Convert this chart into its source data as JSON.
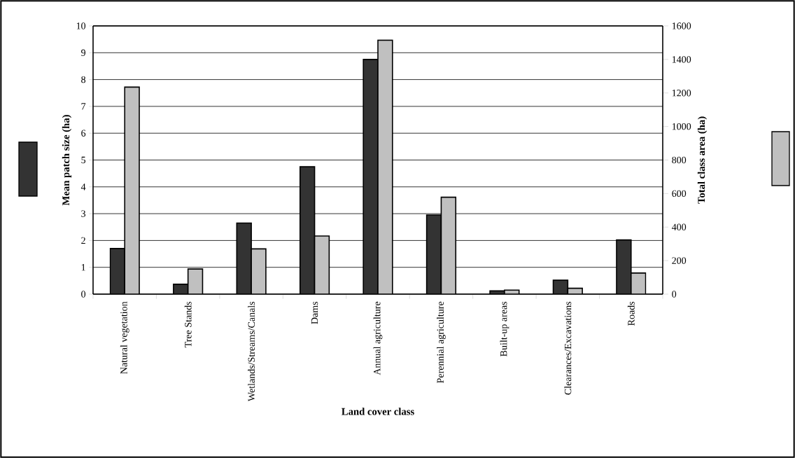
{
  "chart_data": {
    "type": "bar",
    "xlabel": "Land cover class",
    "ylabel": "Mean patch size (ha)",
    "y2label": "Total class area (ha)",
    "categories": [
      "Natural vegetation",
      "Tree Stands",
      "Wetlands/Streams/Canals",
      "Dams",
      "Annual agriculture",
      "Perennial agriculture",
      "Built-up areas",
      "Clearances/Excavations",
      "Roads"
    ],
    "series": [
      {
        "color": "#333333",
        "values": [
          1.7,
          0.37,
          2.65,
          4.75,
          8.75,
          2.95,
          0.12,
          0.52,
          2.02
        ]
      },
      {
        "color": "#c0c0c0",
        "axis": "y2",
        "values": [
          1235,
          150,
          270,
          347,
          1515,
          578,
          24,
          35,
          126
        ]
      }
    ],
    "ylim": [
      0,
      10
    ],
    "yticks": [
      0,
      1,
      2,
      3,
      4,
      5,
      6,
      7,
      8,
      9,
      10
    ],
    "y2lim": [
      0,
      1600
    ],
    "y2ticks": [
      0,
      200,
      400,
      600,
      800,
      1000,
      1200,
      1400,
      1600
    ],
    "grid": "y"
  }
}
